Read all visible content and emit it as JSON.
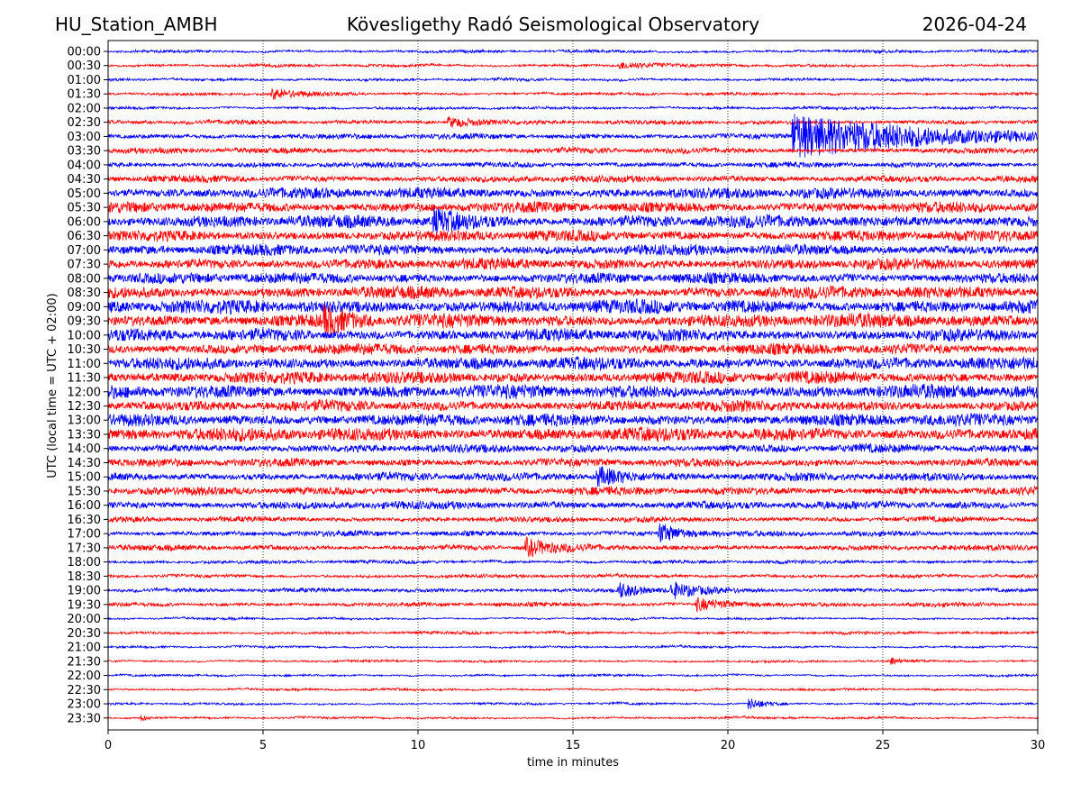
{
  "header": {
    "station": "HU_Station_AMBH",
    "observatory": "Kövesligethy Radó Seismological Observatory",
    "date": "2026-04-24"
  },
  "chart_data": {
    "type": "line",
    "title": "Kövesligethy Radó Seismological Observatory",
    "xlabel": "time in minutes",
    "ylabel": "UTC (local time = UTC + 02:00)",
    "xlim": [
      0,
      30
    ],
    "xticks": [
      "0",
      "5",
      "10",
      "15",
      "20",
      "25",
      "30"
    ],
    "grid": "vertical dotted at x ticks",
    "colors": [
      "#0000ff",
      "#ff0000"
    ],
    "rows": [
      "00:00",
      "00:30",
      "01:00",
      "01:30",
      "02:00",
      "02:30",
      "03:00",
      "03:30",
      "04:00",
      "04:30",
      "05:00",
      "05:30",
      "06:00",
      "06:30",
      "07:00",
      "07:30",
      "08:00",
      "08:30",
      "09:00",
      "09:30",
      "10:00",
      "10:30",
      "11:00",
      "11:30",
      "12:00",
      "12:30",
      "13:00",
      "13:30",
      "14:00",
      "14:30",
      "15:00",
      "15:30",
      "16:00",
      "16:30",
      "17:00",
      "17:30",
      "18:00",
      "18:30",
      "19:00",
      "19:30",
      "20:00",
      "20:30",
      "21:00",
      "21:30",
      "22:00",
      "22:30",
      "23:00",
      "23:30"
    ],
    "noise_level": [
      0.2,
      0.2,
      0.2,
      0.2,
      0.2,
      0.3,
      0.4,
      0.4,
      0.4,
      0.5,
      0.8,
      0.8,
      0.9,
      0.8,
      0.8,
      0.8,
      0.8,
      0.9,
      1.0,
      1.0,
      0.9,
      0.8,
      0.9,
      0.9,
      1.0,
      0.8,
      0.9,
      1.0,
      0.6,
      0.6,
      0.6,
      0.6,
      0.6,
      0.4,
      0.4,
      0.4,
      0.25,
      0.25,
      0.3,
      0.3,
      0.15,
      0.2,
      0.15,
      0.15,
      0.15,
      0.15,
      0.15,
      0.15
    ],
    "events": [
      {
        "row": "00:30",
        "minute": 16.5,
        "amplitude": 0.6,
        "duration": 1.2
      },
      {
        "row": "01:30",
        "minute": 5.3,
        "amplitude": 0.8,
        "duration": 1.5
      },
      {
        "row": "02:30",
        "minute": 11,
        "amplitude": 0.8,
        "duration": 1.5
      },
      {
        "row": "03:00",
        "minute": 22.1,
        "amplitude": 3.5,
        "duration": 6
      },
      {
        "row": "06:00",
        "minute": 10.5,
        "amplitude": 1.6,
        "duration": 1.5
      },
      {
        "row": "09:30",
        "minute": 7,
        "amplitude": 1.8,
        "duration": 1
      },
      {
        "row": "15:00",
        "minute": 15.8,
        "amplitude": 1.4,
        "duration": 1.5
      },
      {
        "row": "17:00",
        "minute": 17.8,
        "amplitude": 1.5,
        "duration": 1
      },
      {
        "row": "17:30",
        "minute": 13.5,
        "amplitude": 1.3,
        "duration": 1.2
      },
      {
        "row": "19:00",
        "minute": 16.5,
        "amplitude": 1.2,
        "duration": 1
      },
      {
        "row": "19:00",
        "minute": 18.2,
        "amplitude": 1.2,
        "duration": 1.2
      },
      {
        "row": "19:30",
        "minute": 19.0,
        "amplitude": 1.0,
        "duration": 1.5
      },
      {
        "row": "21:30",
        "minute": 25.3,
        "amplitude": 0.6,
        "duration": 0.3
      },
      {
        "row": "23:00",
        "minute": 20.7,
        "amplitude": 0.9,
        "duration": 0.8
      },
      {
        "row": "23:30",
        "minute": 1.1,
        "amplitude": 0.5,
        "duration": 0.3
      }
    ]
  }
}
